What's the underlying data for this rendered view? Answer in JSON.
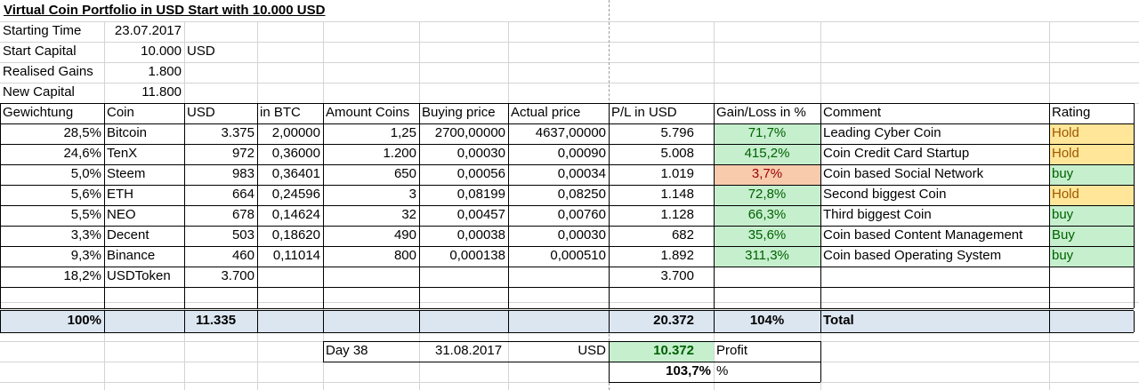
{
  "title": "Virtual Coin Portfolio in USD Start with 10.000 USD",
  "info": [
    {
      "label": "Starting Time",
      "value": "23.07.2017",
      "unit": ""
    },
    {
      "label": "Start Capital",
      "value": "10.000",
      "unit": "USD"
    },
    {
      "label": "Realised Gains",
      "value": "1.800",
      "unit": ""
    },
    {
      "label": "New Capital",
      "value": "11.800",
      "unit": ""
    }
  ],
  "columns": [
    "Gewichtung",
    "Coin",
    "USD",
    "in BTC",
    "Amount Coins",
    "Buying price",
    "Actual price",
    "P/L in USD",
    "Gain/Loss in %",
    "Comment",
    "Rating"
  ],
  "rows": [
    {
      "weight": "28,5%",
      "coin": "Bitcoin",
      "usd": "3.375",
      "btc": "2,00000",
      "amount": "1,25",
      "buy": "2700,00000",
      "actual": "4637,00000",
      "pl": "5.796",
      "gain": "71,7%",
      "comment": "Leading Cyber Coin",
      "rating": "Hold"
    },
    {
      "weight": "24,6%",
      "coin": "TenX",
      "usd": "972",
      "btc": "0,36000",
      "amount": "1.200",
      "buy": "0,00030",
      "actual": "0,00090",
      "pl": "5.008",
      "gain": "415,2%",
      "comment": "Coin Credit Card Startup",
      "rating": "Hold"
    },
    {
      "weight": "5,0%",
      "coin": "Steem",
      "usd": "983",
      "btc": "0,36401",
      "amount": "650",
      "buy": "0,00056",
      "actual": "0,00034",
      "pl": "1.019",
      "gain": "3,7%",
      "comment": "Coin based Social Network",
      "rating": "buy"
    },
    {
      "weight": "5,6%",
      "coin": "ETH",
      "usd": "664",
      "btc": "0,24596",
      "amount": "3",
      "buy": "0,08199",
      "actual": "0,08250",
      "pl": "1.148",
      "gain": "72,8%",
      "comment": "Second biggest Coin",
      "rating": "Hold"
    },
    {
      "weight": "5,5%",
      "coin": "NEO",
      "usd": "678",
      "btc": "0,14624",
      "amount": "32",
      "buy": "0,00457",
      "actual": "0,00760",
      "pl": "1.128",
      "gain": "66,3%",
      "comment": "Third biggest Coin",
      "rating": "buy"
    },
    {
      "weight": "3,3%",
      "coin": "Decent",
      "usd": "503",
      "btc": "0,18620",
      "amount": "490",
      "buy": "0,00038",
      "actual": "0,00030",
      "pl": "682",
      "gain": "35,6%",
      "comment": "Coin based Content Management",
      "rating": "Buy"
    },
    {
      "weight": "9,3%",
      "coin": "Binance",
      "usd": "460",
      "btc": "0,11014",
      "amount": "800",
      "buy": "0,000138",
      "actual": "0,000510",
      "pl": "1.892",
      "gain": "311,3%",
      "comment": "Coin based Operating System",
      "rating": "buy"
    },
    {
      "weight": "18,2%",
      "coin": "USDToken",
      "usd": "3.700",
      "btc": "",
      "amount": "",
      "buy": "",
      "actual": "",
      "pl": "3.700",
      "gain": "",
      "comment": "",
      "rating": ""
    }
  ],
  "totals": {
    "weight": "100%",
    "usd": "11.335",
    "pl": "20.372",
    "gain": "104%",
    "label": "Total"
  },
  "summary": {
    "day": "Day 38",
    "date": "31.08.2017",
    "currency": "USD",
    "profit_value": "10.372",
    "profit_label": "Profit",
    "percent_value": "103,7%",
    "percent_sign": "%"
  },
  "colors": {
    "green_fill": "#c6efce",
    "green_text": "#006100",
    "red_fill": "#f8cbad",
    "yellow_fill": "#ffe699",
    "yellow_text": "#9c5700",
    "total_fill": "#dce6f1"
  }
}
